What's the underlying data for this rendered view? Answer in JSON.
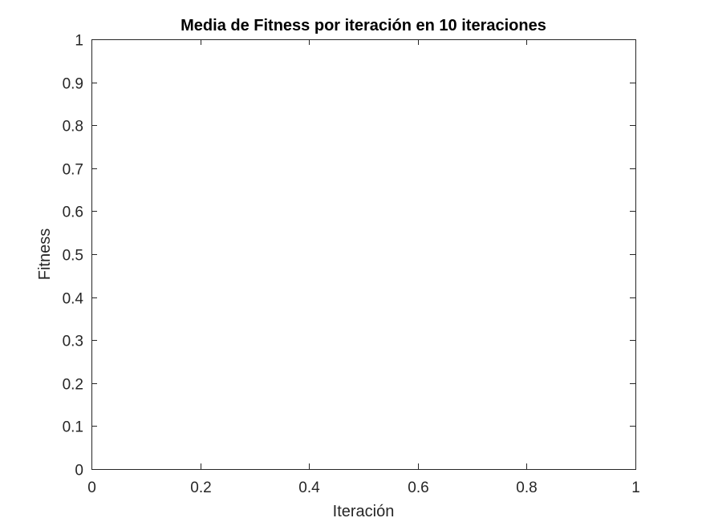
{
  "chart_data": {
    "type": "line",
    "title": "Media de Fitness por iteración en 10 iteraciones",
    "xlabel": "Iteración",
    "ylabel": "Fitness",
    "xlim": [
      0,
      1
    ],
    "ylim": [
      0,
      1
    ],
    "xticks": [
      0,
      0.2,
      0.4,
      0.6,
      0.8,
      1
    ],
    "xtick_labels": [
      "0",
      "0.2",
      "0.4",
      "0.6",
      "0.8",
      "1"
    ],
    "yticks": [
      0,
      0.1,
      0.2,
      0.3,
      0.4,
      0.5,
      0.6,
      0.7,
      0.8,
      0.9,
      1
    ],
    "ytick_labels": [
      "0",
      "0.1",
      "0.2",
      "0.3",
      "0.4",
      "0.5",
      "0.6",
      "0.7",
      "0.8",
      "0.9",
      "1"
    ],
    "series": [],
    "grid": false,
    "box": true,
    "colors": {
      "axis": "#262626",
      "background": "#ffffff"
    }
  }
}
